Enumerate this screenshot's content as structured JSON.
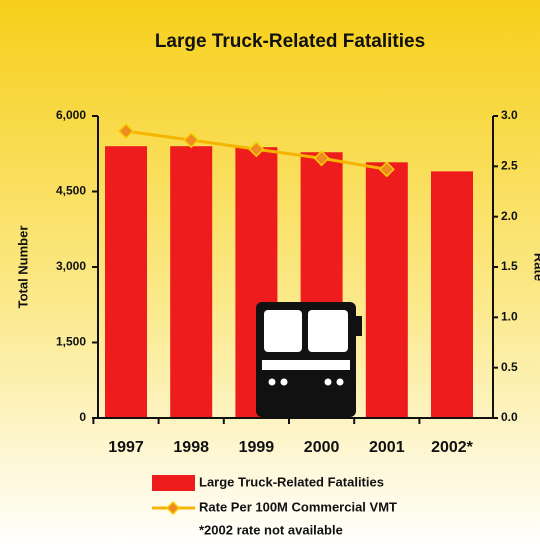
{
  "chart_data": {
    "type": "bar",
    "title": "Large Truck-Related Fatalities",
    "categories": [
      "1997",
      "1998",
      "1999",
      "2000",
      "2001",
      "2002*"
    ],
    "series": [
      {
        "name": "Large Truck-Related Fatalities",
        "color": "#ee1c1c",
        "values": [
          5400,
          5400,
          5380,
          5280,
          5080,
          4900
        ]
      },
      {
        "name": "Rate Per 100M Commercial VMT",
        "color": "#f5b400",
        "axis": "y2",
        "values": [
          2.85,
          2.76,
          2.67,
          2.58,
          2.47,
          null
        ]
      }
    ],
    "ylabel": "Total Number",
    "y2label": "Rate",
    "ylim": [
      0,
      6000
    ],
    "yticks": [
      0,
      {
        "value": 1500,
        "label": "1,500"
      },
      {
        "value": 3000,
        "label": "3,000"
      },
      {
        "value": 4500,
        "label": "4,500"
      },
      {
        "value": 6000,
        "label": "6,000"
      }
    ],
    "y2lim": [
      0,
      3
    ],
    "y2ticks": [
      {
        "value": 0,
        "label": "0.0"
      },
      0.5,
      {
        "value": 1,
        "label": "1.0"
      },
      1.5,
      {
        "value": 2,
        "label": "2.0"
      },
      2.5,
      {
        "value": 3,
        "label": "3.0"
      }
    ],
    "note": "*2002 rate not available",
    "grid": false
  }
}
